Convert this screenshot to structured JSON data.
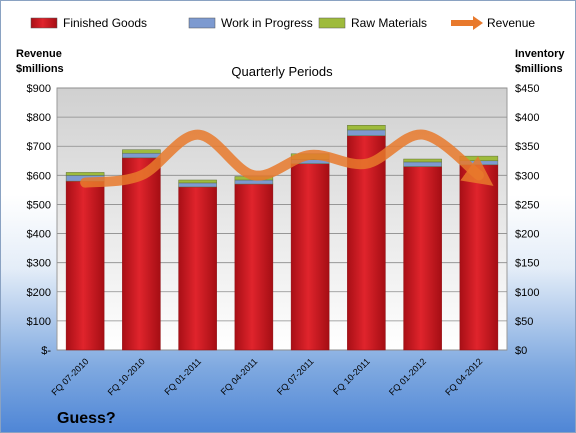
{
  "chart_data": {
    "type": "bar",
    "title": "Quarterly Periods",
    "categories": [
      "FQ 07-2010",
      "FQ 10-2010",
      "FQ 01-2011",
      "FQ 04-2011",
      "FQ 07-2011",
      "FQ 10-2011",
      "FQ 01-2012",
      "FQ 04-2012"
    ],
    "stacked": true,
    "series": [
      {
        "name": "Finished Goods",
        "axis": "right",
        "color": "#c8141c",
        "values": [
          290,
          330,
          280,
          285,
          320,
          368,
          315,
          318
        ]
      },
      {
        "name": "Work in Progress",
        "axis": "right",
        "color": "#7d9ad0",
        "values": [
          10,
          8,
          7,
          7,
          7,
          10,
          8,
          7
        ]
      },
      {
        "name": "Raw Materials",
        "axis": "right",
        "color": "#9ebb3c",
        "values": [
          5,
          6,
          5,
          6,
          10,
          8,
          5,
          8
        ]
      },
      {
        "name": "Revenue",
        "axis": "left",
        "type": "line",
        "color": "#e8792c",
        "values": [
          575,
          600,
          740,
          600,
          670,
          640,
          740,
          600
        ]
      }
    ],
    "y_left": {
      "label_line1": "Revenue",
      "label_line2": "$millions",
      "range": [
        0,
        900
      ],
      "ticks": [
        "$-",
        "$100",
        "$200",
        "$300",
        "$400",
        "$500",
        "$600",
        "$700",
        "$800",
        "$900"
      ]
    },
    "y_right": {
      "label_line1": "Inventory",
      "label_line2": "$millions",
      "range": [
        0,
        450
      ],
      "ticks": [
        "$0",
        "$50",
        "$100",
        "$150",
        "$200",
        "$250",
        "$300",
        "$350",
        "$400",
        "$450"
      ]
    },
    "legend": {
      "position": "top"
    },
    "grid": true
  },
  "footer_text": "Guess?"
}
